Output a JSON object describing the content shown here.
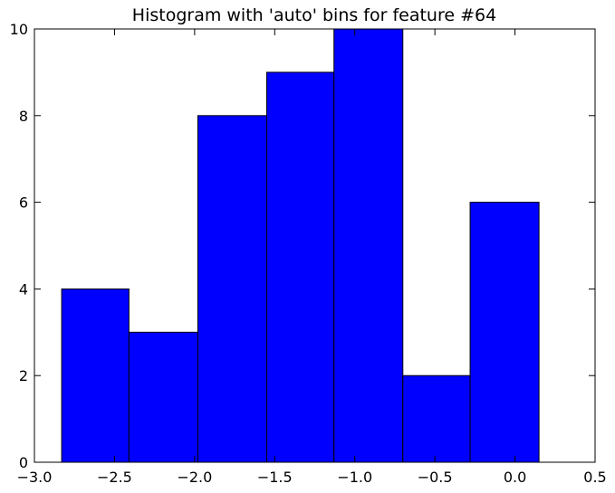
{
  "chart_data": {
    "type": "bar",
    "title": "Histogram with 'auto' bins for feature #64",
    "xlabel": "",
    "ylabel": "",
    "xlim": [
      -3.0,
      0.5
    ],
    "ylim": [
      0,
      10
    ],
    "xticks": [
      -3.0,
      -2.5,
      -2.0,
      -1.5,
      -1.0,
      -0.5,
      0.0,
      0.5
    ],
    "xtick_labels": [
      "−3.0",
      "−2.5",
      "−2.0",
      "−1.5",
      "−1.0",
      "−0.5",
      "0.0",
      "0.5"
    ],
    "yticks": [
      0,
      2,
      4,
      6,
      8,
      10
    ],
    "ytick_labels": [
      "0",
      "2",
      "4",
      "6",
      "8",
      "10"
    ],
    "bin_edges": [
      -2.83,
      -2.41,
      -1.98,
      -1.55,
      -1.13,
      -0.7,
      -0.28,
      0.15
    ],
    "values": [
      4,
      3,
      8,
      9,
      10,
      2,
      6
    ],
    "bar_color": "#0000ff",
    "edge_color": "#000000",
    "grid": false
  }
}
